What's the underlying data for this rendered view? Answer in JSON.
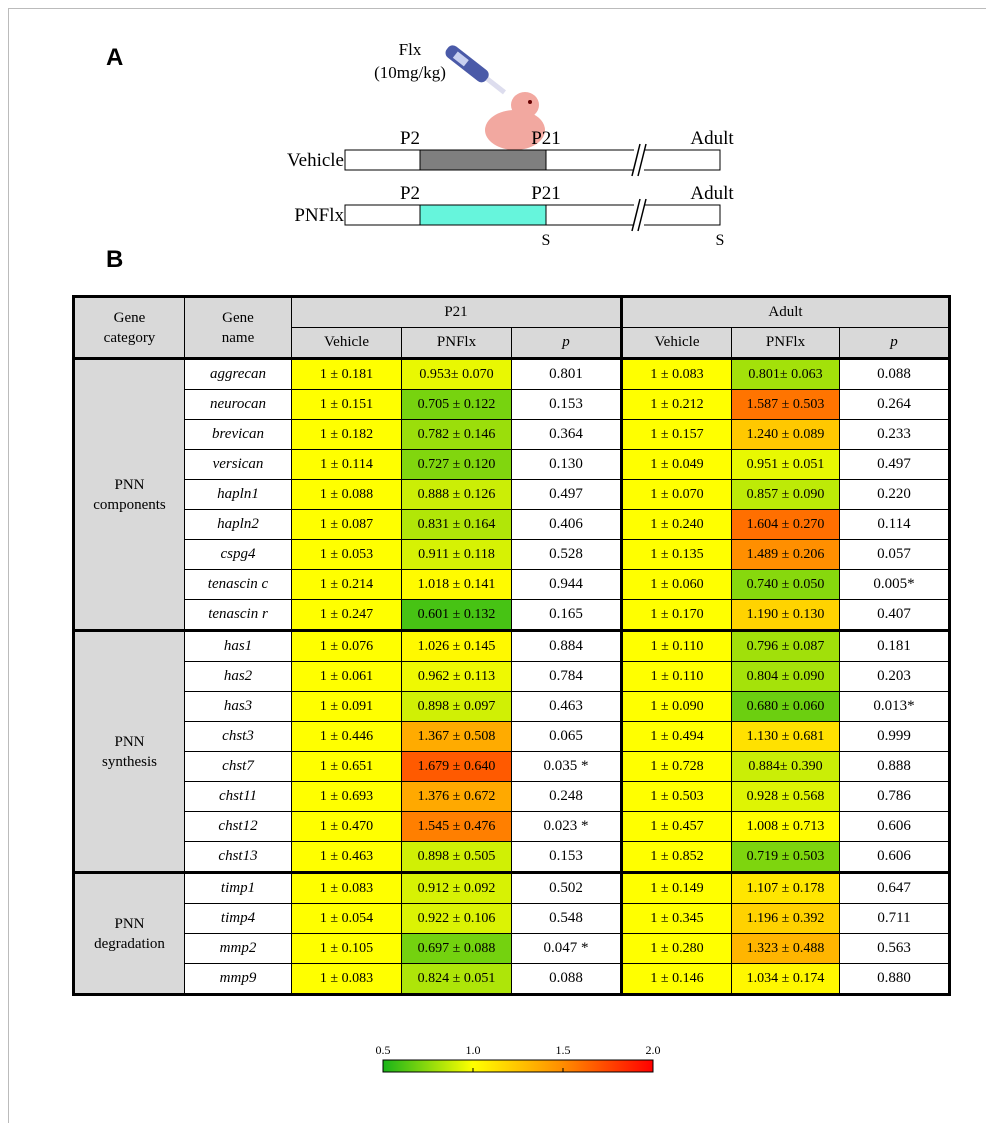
{
  "panel_a": {
    "label": "A",
    "drug": "Flx",
    "dose": "(10mg/kg)",
    "groups": [
      {
        "name": "Vehicle",
        "start": "P2",
        "mid": "P21",
        "end": "Adult",
        "color": "#7f7f7f"
      },
      {
        "name": "PNFlx",
        "start": "P2",
        "mid": "P21",
        "end": "Adult",
        "color": "#66f5dc",
        "marks": [
          "S",
          "S"
        ]
      }
    ]
  },
  "panel_b": {
    "label": "B",
    "table": {
      "header": {
        "category": [
          "Gene",
          "category"
        ],
        "gene": [
          "Gene",
          "name"
        ],
        "periods": [
          "P21",
          "Adult"
        ],
        "columns": [
          "Vehicle",
          "PNFlx",
          "p"
        ]
      },
      "groups": [
        {
          "category": [
            "PNN",
            "components"
          ],
          "rows": [
            [
              "aggrecan",
              "1 ± 0.181",
              "0.953± 0.070",
              "0.801",
              "1 ± 0.083",
              "0.801± 0.063",
              "0.088"
            ],
            [
              "neurocan",
              "1 ± 0.151",
              "0.705 ± 0.122",
              "0.153",
              "1 ± 0.212",
              "1.587 ± 0.503",
              "0.264"
            ],
            [
              "brevican",
              "1 ± 0.182",
              "0.782 ± 0.146",
              "0.364",
              "1 ± 0.157",
              "1.240 ± 0.089",
              "0.233"
            ],
            [
              "versican",
              "1 ± 0.114",
              "0.727 ± 0.120",
              "0.130",
              "1 ± 0.049",
              "0.951 ± 0.051",
              "0.497"
            ],
            [
              "hapln1",
              "1 ± 0.088",
              "0.888 ± 0.126",
              "0.497",
              "1 ± 0.070",
              "0.857 ± 0.090",
              "0.220"
            ],
            [
              "hapln2",
              "1 ± 0.087",
              "0.831 ± 0.164",
              "0.406",
              "1 ± 0.240",
              "1.604 ± 0.270",
              "0.114"
            ],
            [
              "cspg4",
              "1 ± 0.053",
              "0.911 ± 0.118",
              "0.528",
              "1 ± 0.135",
              "1.489 ± 0.206",
              "0.057"
            ],
            [
              "tenascin c",
              "1 ± 0.214",
              "1.018 ± 0.141",
              "0.944",
              "1 ± 0.060",
              "0.740 ± 0.050",
              "0.005*"
            ],
            [
              "tenascin r",
              "1 ± 0.247",
              "0.601 ± 0.132",
              "0.165",
              "1 ± 0.170",
              "1.190 ± 0.130",
              "0.407"
            ]
          ]
        },
        {
          "category": [
            "PNN",
            "synthesis"
          ],
          "rows": [
            [
              "has1",
              "1 ± 0.076",
              "1.026 ± 0.145",
              "0.884",
              "1 ± 0.110",
              "0.796 ± 0.087",
              "0.181"
            ],
            [
              "has2",
              "1 ± 0.061",
              "0.962 ± 0.113",
              "0.784",
              "1 ± 0.110",
              "0.804 ± 0.090",
              "0.203"
            ],
            [
              "has3",
              "1 ± 0.091",
              "0.898 ± 0.097",
              "0.463",
              "1 ± 0.090",
              "0.680 ± 0.060",
              "0.013*"
            ],
            [
              "chst3",
              "1 ± 0.446",
              "1.367 ± 0.508",
              "0.065",
              "1 ± 0.494",
              "1.130 ± 0.681",
              "0.999"
            ],
            [
              "chst7",
              "1 ± 0.651",
              "1.679 ± 0.640",
              "0.035 *",
              "1 ± 0.728",
              "0.884± 0.390",
              "0.888"
            ],
            [
              "chst11",
              "1 ± 0.693",
              "1.376 ± 0.672",
              "0.248",
              "1 ± 0.503",
              "0.928 ± 0.568",
              "0.786"
            ],
            [
              "chst12",
              "1 ± 0.470",
              "1.545 ± 0.476",
              "0.023 *",
              "1 ± 0.457",
              "1.008 ± 0.713",
              "0.606"
            ],
            [
              "chst13",
              "1 ± 0.463",
              "0.898 ± 0.505",
              "0.153",
              "1 ± 0.852",
              "0.719 ± 0.503",
              "0.606"
            ]
          ]
        },
        {
          "category": [
            "PNN",
            "degradation"
          ],
          "rows": [
            [
              "timp1",
              "1 ± 0.083",
              "0.912 ± 0.092",
              "0.502",
              "1 ± 0.149",
              "1.107 ± 0.178",
              "0.647"
            ],
            [
              "timp4",
              "1 ± 0.054",
              "0.922 ± 0.106",
              "0.548",
              "1 ± 0.345",
              "1.196 ± 0.392",
              "0.711"
            ],
            [
              "mmp2",
              "1 ± 0.105",
              "0.697 ± 0.088",
              "0.047 *",
              "1 ± 0.280",
              "1.323 ± 0.488",
              "0.563"
            ],
            [
              "mmp9",
              "1 ± 0.083",
              "0.824 ± 0.051",
              "0.088",
              "1 ± 0.146",
              "1.034 ± 0.174",
              "0.880"
            ]
          ]
        }
      ]
    },
    "colorbar": {
      "ticks": [
        0.5,
        {
          "value": 1,
          "label": "1.0"
        },
        1.5,
        {
          "value": 2,
          "label": "2.0"
        }
      ],
      "colors": [
        "#19b419",
        "#ffff00",
        "#ff8c00",
        "#ff0000"
      ]
    }
  }
}
